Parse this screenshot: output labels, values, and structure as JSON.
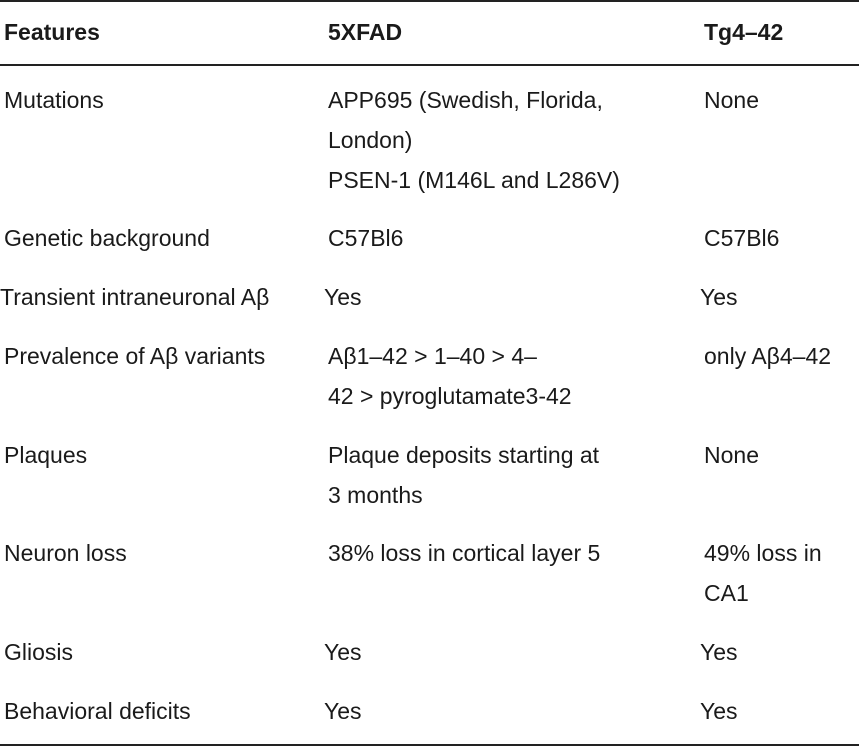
{
  "header": {
    "features": "Features",
    "fivexfad": "5XFAD",
    "tg442": "Tg4–42"
  },
  "rows": [
    {
      "feature": "Mutations",
      "fivexfad_lines": [
        "APP695 (Swedish, Florida,",
        "London)",
        "PSEN-1 (M146L and L286V)"
      ],
      "tg442_lines": [
        "None"
      ]
    },
    {
      "feature": "Genetic background",
      "fivexfad_lines": [
        "C57Bl6"
      ],
      "tg442_lines": [
        "C57Bl6"
      ]
    },
    {
      "feature": "Transient intraneuronal Aβ",
      "fivexfad_lines": [
        "Yes"
      ],
      "tg442_lines": [
        "Yes"
      ]
    },
    {
      "feature": "Prevalence of Aβ variants",
      "fivexfad_lines": [
        "Aβ1–42 > 1–40 > 4–",
        "42 > pyroglutamate3-42"
      ],
      "tg442_lines": [
        "only Aβ4–42"
      ]
    },
    {
      "feature": "Plaques",
      "fivexfad_lines": [
        "Plaque deposits starting at",
        "3 months"
      ],
      "tg442_lines": [
        "None"
      ]
    },
    {
      "feature": "Neuron loss",
      "fivexfad_lines": [
        "38% loss in cortical layer 5"
      ],
      "tg442_lines": [
        "49% loss in",
        "CA1"
      ]
    },
    {
      "feature": "Gliosis",
      "fivexfad_lines": [
        "Yes"
      ],
      "tg442_lines": [
        "Yes"
      ]
    },
    {
      "feature": "Behavioral deficits",
      "fivexfad_lines": [
        "Yes"
      ],
      "tg442_lines": [
        "Yes"
      ]
    }
  ]
}
